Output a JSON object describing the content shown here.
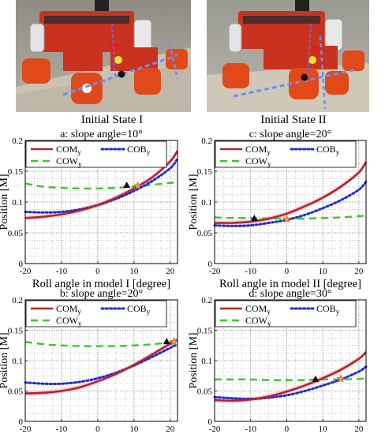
{
  "captions": {
    "left": "Initial State I",
    "right": "Initial State II"
  },
  "colors": {
    "com": "#b0272a",
    "cob": "#1f2bd6",
    "cow": "#3fc52e",
    "grid": "#9a9a9a",
    "band": "#f4a6c4"
  },
  "chart_data": [
    {
      "type": "line",
      "title": "a: slope angle=10°",
      "xlabel": "Roll angle in model I [degree]",
      "ylabel": "Position [M]",
      "xlim": [
        -20,
        22
      ],
      "ylim": [
        0,
        0.2
      ],
      "xticks": [
        "-20",
        "-10",
        "0",
        "10",
        "20"
      ],
      "yticks": [
        "0",
        "0.05",
        "0.1",
        "0.15",
        "0.2"
      ],
      "grid": true,
      "legend": "top-left",
      "x": [
        -20,
        -15,
        -10,
        -5,
        0,
        5,
        10,
        15,
        20,
        22
      ],
      "series": [
        {
          "name": "COMy",
          "style": "solid",
          "values": [
            0.074,
            0.076,
            0.08,
            0.086,
            0.095,
            0.107,
            0.122,
            0.14,
            0.166,
            0.183
          ]
        },
        {
          "name": "COBy",
          "style": "dotted",
          "values": [
            0.084,
            0.083,
            0.084,
            0.088,
            0.095,
            0.105,
            0.118,
            0.134,
            0.155,
            0.17
          ]
        },
        {
          "name": "COWy",
          "style": "dashed",
          "values": [
            0.13,
            0.125,
            0.123,
            0.122,
            0.122,
            0.123,
            0.125,
            0.128,
            0.131,
            0.132
          ]
        }
      ],
      "markers": [
        {
          "label": "black-triangle",
          "x": 8,
          "y": 0.127
        },
        {
          "label": "orange-star",
          "x": 11,
          "y": 0.126
        }
      ]
    },
    {
      "type": "line",
      "title": "c: slope angle=20°",
      "xlabel": "Roll angle in model II [degree]",
      "ylabel": "Position [M]",
      "xlim": [
        -20,
        22
      ],
      "ylim": [
        0,
        0.2
      ],
      "xticks": [
        "-20",
        "-10",
        "0",
        "10",
        "20"
      ],
      "yticks": [
        "0",
        "0.05",
        "0.1",
        "0.15",
        "0.2"
      ],
      "grid": true,
      "legend": "top-left",
      "x": [
        -20,
        -15,
        -10,
        -5,
        0,
        5,
        10,
        15,
        20,
        22
      ],
      "series": [
        {
          "name": "COMy",
          "style": "solid",
          "values": [
            0.066,
            0.066,
            0.068,
            0.073,
            0.081,
            0.093,
            0.107,
            0.125,
            0.148,
            0.165
          ]
        },
        {
          "name": "COBy",
          "style": "dotted",
          "values": [
            0.062,
            0.061,
            0.062,
            0.066,
            0.071,
            0.079,
            0.09,
            0.103,
            0.12,
            0.133
          ]
        },
        {
          "name": "COWy",
          "style": "dashed",
          "values": [
            0.075,
            0.074,
            0.074,
            0.073,
            0.073,
            0.073,
            0.074,
            0.075,
            0.077,
            0.078
          ]
        }
      ],
      "markers": [
        {
          "label": "black-triangle",
          "x": -9,
          "y": 0.073
        },
        {
          "label": "orange-star",
          "x": 0,
          "y": 0.072
        }
      ]
    },
    {
      "type": "line",
      "title": "b: slope angle=20°",
      "xlabel": "Roll angle in model I [degree]",
      "ylabel": "Position [M]",
      "xlim": [
        -20,
        22
      ],
      "ylim": [
        0,
        0.2
      ],
      "xticks": [
        "-20",
        "-10",
        "0",
        "10",
        "20"
      ],
      "yticks": [
        "0",
        "0.05",
        "0.1",
        "0.15",
        "0.2"
      ],
      "grid": true,
      "legend": "top-left",
      "x": [
        -20,
        -15,
        -10,
        -5,
        0,
        5,
        10,
        15,
        20,
        22
      ],
      "series": [
        {
          "name": "COMy",
          "style": "solid",
          "values": [
            0.046,
            0.047,
            0.05,
            0.056,
            0.066,
            0.078,
            0.093,
            0.11,
            0.128,
            0.134
          ]
        },
        {
          "name": "COBy",
          "style": "dotted",
          "values": [
            0.064,
            0.062,
            0.062,
            0.065,
            0.071,
            0.08,
            0.092,
            0.106,
            0.121,
            0.127
          ]
        },
        {
          "name": "COWy",
          "style": "dashed",
          "values": [
            0.131,
            0.127,
            0.125,
            0.124,
            0.124,
            0.124,
            0.125,
            0.127,
            0.13,
            0.131
          ]
        }
      ],
      "markers": [
        {
          "label": "black-triangle",
          "x": 19,
          "y": 0.131
        },
        {
          "label": "orange-star",
          "x": 21,
          "y": 0.131
        }
      ]
    },
    {
      "type": "line",
      "title": "d: slope angle=30°",
      "xlabel": "Roll angle in model II [degree]",
      "ylabel": "Position [M]",
      "xlim": [
        -20,
        22
      ],
      "ylim": [
        0,
        0.2
      ],
      "xticks": [
        "-20",
        "-10",
        "0",
        "10",
        "20"
      ],
      "yticks": [
        "0",
        "0.05",
        "0.1",
        "0.15",
        "0.2"
      ],
      "grid": true,
      "legend": "top-left",
      "x": [
        -20,
        -15,
        -10,
        -5,
        0,
        5,
        10,
        15,
        20,
        22
      ],
      "series": [
        {
          "name": "COMy",
          "style": "solid",
          "values": [
            0.035,
            0.034,
            0.036,
            0.041,
            0.049,
            0.059,
            0.071,
            0.085,
            0.103,
            0.114
          ]
        },
        {
          "name": "COBy",
          "style": "dotted",
          "values": [
            0.04,
            0.038,
            0.037,
            0.039,
            0.043,
            0.05,
            0.059,
            0.069,
            0.082,
            0.09
          ]
        },
        {
          "name": "COWy",
          "style": "dashed",
          "values": [
            0.069,
            0.069,
            0.069,
            0.068,
            0.068,
            0.068,
            0.069,
            0.069,
            0.07,
            0.071
          ]
        }
      ],
      "markers": [
        {
          "label": "black-triangle",
          "x": 8,
          "y": 0.069
        },
        {
          "label": "orange-star",
          "x": 15,
          "y": 0.07
        }
      ]
    }
  ]
}
